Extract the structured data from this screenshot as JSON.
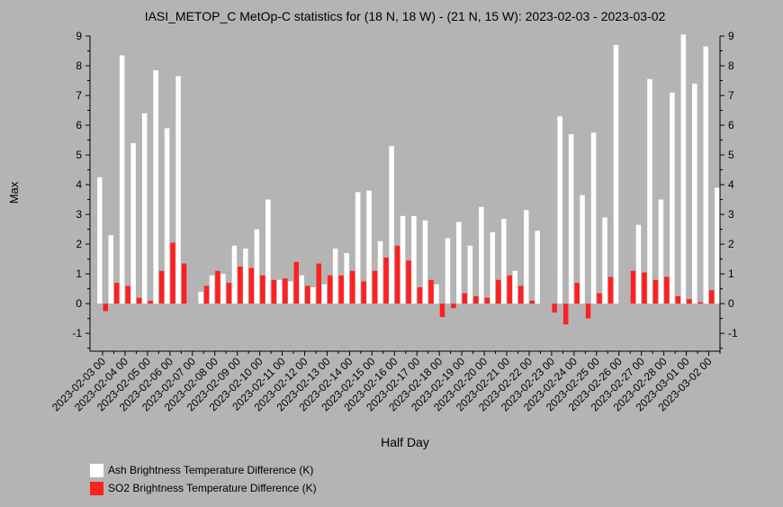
{
  "chart_data": {
    "type": "bar",
    "title": "IASI_METOP_C MetOp-C statistics for (18 N, 18 W) - (21 N, 15 W): 2023-02-03 - 2023-03-02",
    "xlabel": "Half Day",
    "ylabel": "Max",
    "ylim": [
      -1.6,
      9
    ],
    "yticks": [
      -1,
      0,
      1,
      2,
      3,
      4,
      5,
      6,
      7,
      8,
      9
    ],
    "grid": false,
    "legend_position": "bottom-left",
    "x_tick_labels": [
      "2023-02-03 00",
      "2023-02-04 00",
      "2023-02-05 00",
      "2023-02-06 00",
      "2023-02-07 00",
      "2023-02-08 00",
      "2023-02-09 00",
      "2023-02-10 00",
      "2023-02-11 00",
      "2023-02-12 00",
      "2023-02-13 00",
      "2023-02-14 00",
      "2023-02-15 00",
      "2023-02-16 00",
      "2023-02-17 00",
      "2023-02-18 00",
      "2023-02-19 00",
      "2023-02-20 00",
      "2023-02-21 00",
      "2023-02-22 00",
      "2023-02-23 00",
      "2023-02-24 00",
      "2023-02-25 00",
      "2023-02-26 00",
      "2023-02-27 00",
      "2023-02-28 00",
      "2023-03-01 00",
      "2023-03-02 00"
    ],
    "categories": [
      "2023-02-03 00",
      "2023-02-03 12",
      "2023-02-04 00",
      "2023-02-04 12",
      "2023-02-05 00",
      "2023-02-05 12",
      "2023-02-06 00",
      "2023-02-06 12",
      "2023-02-07 00",
      "2023-02-07 12",
      "2023-02-08 00",
      "2023-02-08 12",
      "2023-02-09 00",
      "2023-02-09 12",
      "2023-02-10 00",
      "2023-02-10 12",
      "2023-02-11 00",
      "2023-02-11 12",
      "2023-02-12 00",
      "2023-02-12 12",
      "2023-02-13 00",
      "2023-02-13 12",
      "2023-02-14 00",
      "2023-02-14 12",
      "2023-02-15 00",
      "2023-02-15 12",
      "2023-02-16 00",
      "2023-02-16 12",
      "2023-02-17 00",
      "2023-02-17 12",
      "2023-02-18 00",
      "2023-02-18 12",
      "2023-02-19 00",
      "2023-02-19 12",
      "2023-02-20 00",
      "2023-02-20 12",
      "2023-02-21 00",
      "2023-02-21 12",
      "2023-02-22 00",
      "2023-02-22 12",
      "2023-02-23 00",
      "2023-02-23 12",
      "2023-02-24 00",
      "2023-02-24 12",
      "2023-02-25 00",
      "2023-02-25 12",
      "2023-02-26 00",
      "2023-02-26 12",
      "2023-02-27 00",
      "2023-02-27 12",
      "2023-02-28 00",
      "2023-02-28 12",
      "2023-03-01 00",
      "2023-03-01 12",
      "2023-03-02 00",
      "2023-03-02 12"
    ],
    "series": [
      {
        "name": "Ash Brightness Temperature Difference (K)",
        "color": "#ffffff",
        "values": [
          4.25,
          2.3,
          8.35,
          5.4,
          6.4,
          7.85,
          5.9,
          7.65,
          null,
          0.4,
          0.95,
          1.0,
          1.95,
          1.85,
          2.5,
          3.5,
          0.8,
          0.75,
          0.95,
          0.55,
          0.65,
          1.85,
          1.7,
          3.75,
          3.8,
          2.1,
          5.3,
          2.95,
          2.95,
          2.8,
          0.65,
          2.2,
          2.75,
          1.95,
          3.25,
          2.4,
          2.85,
          1.1,
          3.15,
          2.45,
          null,
          6.3,
          5.7,
          3.65,
          5.75,
          2.9,
          8.7,
          null,
          2.65,
          7.55,
          3.5,
          7.1,
          9.05,
          7.4,
          8.65,
          3.9
        ]
      },
      {
        "name": "SO2 Brightness Temperature Difference (K)",
        "color": "#ff2020",
        "values": [
          -0.25,
          0.7,
          0.6,
          0.2,
          0.1,
          1.1,
          2.05,
          1.35,
          null,
          0.6,
          1.1,
          0.7,
          1.25,
          1.2,
          0.95,
          0.8,
          0.85,
          1.4,
          0.6,
          1.35,
          0.95,
          0.95,
          1.1,
          0.75,
          1.1,
          1.55,
          1.95,
          1.45,
          0.55,
          0.8,
          -0.45,
          -0.15,
          0.35,
          0.25,
          0.2,
          0.8,
          0.95,
          0.6,
          0.1,
          null,
          -0.3,
          -0.7,
          0.7,
          -0.5,
          0.35,
          0.9,
          null,
          1.1,
          1.05,
          0.8,
          0.9,
          0.25,
          0.15,
          0.05,
          0.45,
          null
        ]
      }
    ]
  }
}
